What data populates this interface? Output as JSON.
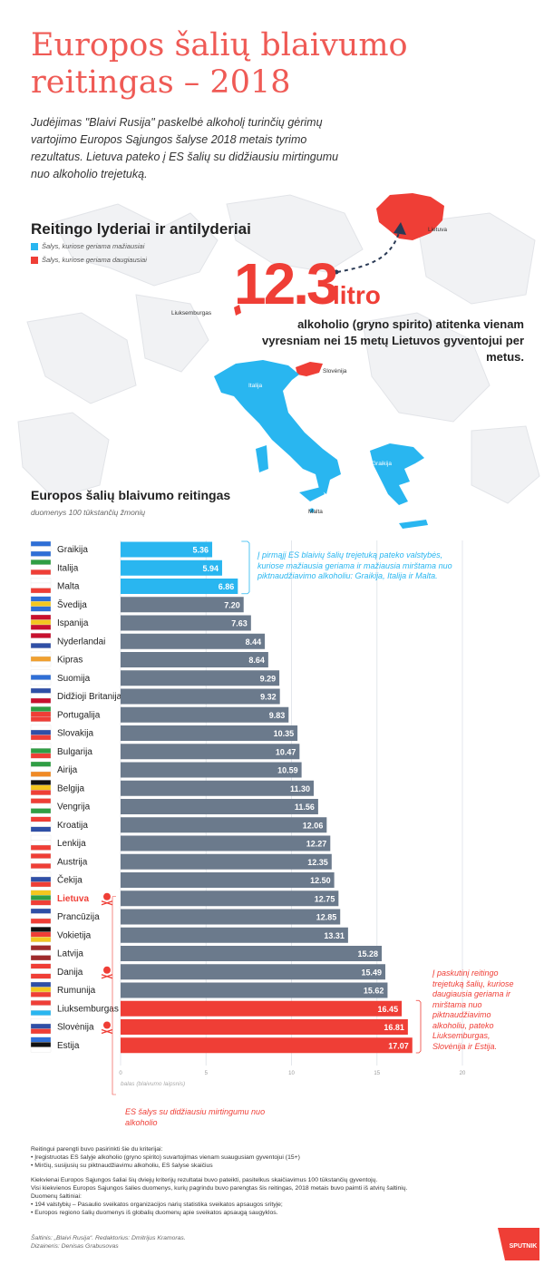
{
  "title": "Europos šalių blaivumo reitingas – 2018",
  "intro": "Judėjimas \"Blaivi Rusija\" paskelbė alkoholį turinčių gėrimų vartojimo Europos Sąjungos šalyse 2018 metais tyrimo rezultatus. Lietuva pateko į ES šalių su didžiausiu mirtingumu nuo alkoholio trejetuką.",
  "leaders": {
    "title": "Reitingo lyderiai ir antilyderiai",
    "legend_low": "Šalys, kuriose geriama mažiausiai",
    "legend_high": "Šalys, kuriose geriama daugiausiai",
    "color_low": "#29b6f0",
    "color_high": "#ef3e36"
  },
  "headline": {
    "value": "12.3",
    "unit": "litro",
    "line1": "alkoholio (gryno spirito)  atitenka vienam",
    "line2": "vyresniam nei 15 metų Lietuvos gyventojui per metus."
  },
  "map_labels": {
    "lietuva": "Lietuva",
    "liuksemburgas": "Liuksemburgas",
    "slovenija": "Slovėnija",
    "italija": "Italija",
    "graikija": "Graikija",
    "malta": "Malta"
  },
  "ranking": {
    "title": "Europos šalių blaivumo reitingas",
    "subtitle": "duomenys 100 tūkstančių žmonių"
  },
  "notes": {
    "top": "Į pirmąjį ES blaivių šalių trejetuką pateko valstybės, kuriose mažiausia geriama ir mažiausia mirštama nuo piktnaudžiavimo alkoholiu: Graikija, Italija ir Malta.",
    "bottom": "Į paskutinį reitingo trejetuką šalių, kuriose daugiausia geriama ir mirštama nuo piktnaudžiavimo alkoholiu, pateko Liuksemburgas, Slovėnija ir Estija.",
    "skull": "ES šalys su didžiausiu mirtingumu nuo alkoholio"
  },
  "chart_data": {
    "type": "bar",
    "orientation": "horizontal",
    "xlabel": "balas (blaivumo laipsnis)",
    "xlim": [
      0,
      20
    ],
    "xticks": [
      "0",
      "5",
      "10",
      "15",
      "20"
    ],
    "grid": true,
    "colors": {
      "low": "#29b6f0",
      "mid": "#6b7a8c",
      "high": "#ef3e36"
    },
    "categories": [
      "Graikija",
      "Italija",
      "Malta",
      "Švedija",
      "Ispanija",
      "Nyderlandai",
      "Kipras",
      "Suomija",
      "Didžioji Britanija",
      "Portugalija",
      "Slovakija",
      "Bulgarija",
      "Airija",
      "Belgija",
      "Vengrija",
      "Kroatija",
      "Lenkija",
      "Austrija",
      "Čekija",
      "Lietuva",
      "Prancūzija",
      "Vokietija",
      "Latvija",
      "Danija",
      "Rumunija",
      "Liuksemburgas",
      "Slovėnija",
      "Estija"
    ],
    "values": [
      5.36,
      5.94,
      6.86,
      7.2,
      7.63,
      8.44,
      8.64,
      9.29,
      9.32,
      9.83,
      10.35,
      10.47,
      10.59,
      11.3,
      11.56,
      12.06,
      12.27,
      12.35,
      12.5,
      12.75,
      12.85,
      13.31,
      15.28,
      15.49,
      15.62,
      16.45,
      16.81,
      17.07
    ],
    "labels": [
      "5.36",
      "5.94",
      "6.86",
      "7.20",
      "7.63",
      "8.44",
      "8.64",
      "9.29",
      "9.32",
      "9.83",
      "10.35",
      "10.47",
      "10.59",
      "11.30",
      "11.56",
      "12.06",
      "12.27",
      "12.35",
      "12.50",
      "12.75",
      "12.85",
      "13.31",
      "15.28",
      "15.49",
      "15.62",
      "16.45",
      "16.81",
      "17.07"
    ],
    "group": [
      "low",
      "low",
      "low",
      "mid",
      "mid",
      "mid",
      "mid",
      "mid",
      "mid",
      "mid",
      "mid",
      "mid",
      "mid",
      "mid",
      "mid",
      "mid",
      "mid",
      "mid",
      "mid",
      "mid",
      "mid",
      "mid",
      "mid",
      "mid",
      "mid",
      "high",
      "high",
      "high"
    ],
    "skull_marked": [
      "Lietuva",
      "Danija",
      "Slovėnija"
    ]
  },
  "footnotes": {
    "p1": "Reitingui parengti buvo pasirinkti šie du kriterijai:",
    "p2": "• Įregistruotas ES šalyje alkoholio (gryno spirito)  suvartojimas vienam suaugusiam gyventojui (15+)",
    "p3": "• Mirčių, susijusių su piktnaudžiavimu alkoholiu, ES šalyse skaičius",
    "p4": "Kiekvienai Europos Sąjungos šaliai šių dviejų kriterijų rezultatai buvo pateikti, pasitelkus skaičiavimus 100 tūkstančių gyventojų.",
    "p5": "Visi kiekvienos Europos Sąjungos šalies duomenys, kurių pagrindu buvo parengtas šis reitingas, 2018 metais buvo paimti iš atvirų šaltinių.",
    "p6": "Duomenų šaltiniai:",
    "p7": "• 194 valstybių – Pasaulio sveikatos organizacijos narių statistika sveikatos apsaugos srityje;",
    "p8": "• Europos regiono šalių duomenys iš globalių duomenų apie sveikatos apsaugą saugyklos."
  },
  "source": {
    "line1": "Šaltinis: „Blaivi Rusija“. Redaktorius: Dmitrijus Kramoras.",
    "line2": "Dizaineris: Denisas Grabusovas"
  },
  "brand": "SPUTNIK"
}
